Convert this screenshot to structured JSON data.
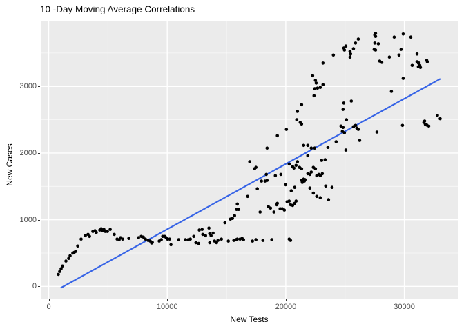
{
  "title": "10 -Day Moving Average Correlations",
  "colors": {
    "panel_bg": "#EBEBEB",
    "grid": "#FFFFFF",
    "point": "#000000",
    "trend": "#3764E6",
    "tick_label": "#4D4D4D",
    "tick_mark": "#333333",
    "outer_bg": "#FFFFFF"
  },
  "chart_data": {
    "type": "scatter",
    "title": "10 -Day Moving Average Correlations",
    "xlabel": "New Tests",
    "ylabel": "New Cases",
    "legend": false,
    "grid": true,
    "xlim": [
      -670,
      34508
    ],
    "ylim": [
      -193,
      3985
    ],
    "x_ticks": [
      0,
      10000,
      20000,
      30000
    ],
    "y_ticks": [
      0,
      1000,
      2000,
      3000
    ],
    "x_minor_ticks": [
      5000,
      15000,
      25000
    ],
    "y_minor_ticks": [
      500,
      1500,
      2500,
      3500
    ],
    "trend_line": {
      "x": [
        1050,
        33000
      ],
      "y": [
        -20,
        3110
      ]
    },
    "point_radius": 2.3,
    "points": [
      [
        815,
        180
      ],
      [
        930,
        225
      ],
      [
        1050,
        265
      ],
      [
        1165,
        305
      ],
      [
        1455,
        380
      ],
      [
        1690,
        420
      ],
      [
        1805,
        460
      ],
      [
        2040,
        500
      ],
      [
        2155,
        510
      ],
      [
        2270,
        525
      ],
      [
        2450,
        605
      ],
      [
        2740,
        710
      ],
      [
        3090,
        760
      ],
      [
        3320,
        780
      ],
      [
        3440,
        750
      ],
      [
        3730,
        825
      ],
      [
        3905,
        835
      ],
      [
        4020,
        810
      ],
      [
        4310,
        845
      ],
      [
        4430,
        865
      ],
      [
        4545,
        835
      ],
      [
        4660,
        855
      ],
      [
        4780,
        825
      ],
      [
        4955,
        825
      ],
      [
        5190,
        855
      ],
      [
        5535,
        780
      ],
      [
        5770,
        710
      ],
      [
        5945,
        700
      ],
      [
        6060,
        730
      ],
      [
        6235,
        710
      ],
      [
        6760,
        720
      ],
      [
        7575,
        730
      ],
      [
        7810,
        750
      ],
      [
        7985,
        740
      ],
      [
        8160,
        710
      ],
      [
        8390,
        690
      ],
      [
        8570,
        680
      ],
      [
        8685,
        650
      ],
      [
        8740,
        660
      ],
      [
        9325,
        680
      ],
      [
        9500,
        700
      ],
      [
        9620,
        750
      ],
      [
        9790,
        750
      ],
      [
        9910,
        730
      ],
      [
        10025,
        710
      ],
      [
        10200,
        710
      ],
      [
        10315,
        625
      ],
      [
        10960,
        700
      ],
      [
        11540,
        700
      ],
      [
        11775,
        700
      ],
      [
        11950,
        710
      ],
      [
        12240,
        750
      ],
      [
        12415,
        655
      ],
      [
        12650,
        645
      ],
      [
        12705,
        845
      ],
      [
        12940,
        855
      ],
      [
        13000,
        780
      ],
      [
        13230,
        760
      ],
      [
        13520,
        875
      ],
      [
        13580,
        790
      ],
      [
        13700,
        760
      ],
      [
        13870,
        800
      ],
      [
        13580,
        655
      ],
      [
        13990,
        680
      ],
      [
        14165,
        655
      ],
      [
        14280,
        690
      ],
      [
        14570,
        710
      ],
      [
        14865,
        955
      ],
      [
        15155,
        680
      ],
      [
        15330,
        1010
      ],
      [
        15505,
        1020
      ],
      [
        15680,
        1060
      ],
      [
        15855,
        1155
      ],
      [
        15620,
        690
      ],
      [
        15795,
        700
      ],
      [
        15910,
        710
      ],
      [
        16145,
        710
      ],
      [
        16320,
        720
      ],
      [
        16435,
        700
      ],
      [
        17195,
        680
      ],
      [
        17485,
        700
      ],
      [
        18070,
        690
      ],
      [
        18825,
        700
      ],
      [
        20285,
        710
      ],
      [
        20400,
        690
      ],
      [
        15910,
        1235
      ],
      [
        16030,
        1155
      ],
      [
        16785,
        1350
      ],
      [
        16960,
        1870
      ],
      [
        17370,
        1765
      ],
      [
        17600,
        1465
      ],
      [
        17485,
        1785
      ],
      [
        17950,
        1580
      ],
      [
        18245,
        1580
      ],
      [
        18420,
        1590
      ],
      [
        18360,
        1680
      ],
      [
        19120,
        1660
      ],
      [
        19585,
        1680
      ],
      [
        19990,
        1525
      ],
      [
        20460,
        1435
      ],
      [
        20750,
        1485
      ],
      [
        20285,
        1835
      ],
      [
        20575,
        1795
      ],
      [
        20865,
        1815
      ],
      [
        20985,
        1870
      ],
      [
        21160,
        1785
      ],
      [
        21335,
        1765
      ],
      [
        20690,
        1775
      ],
      [
        21335,
        1590
      ],
      [
        21510,
        1610
      ],
      [
        21565,
        1580
      ],
      [
        21625,
        1600
      ],
      [
        21390,
        1560
      ],
      [
        21860,
        1690
      ],
      [
        22030,
        1680
      ],
      [
        22150,
        1715
      ],
      [
        22325,
        1785
      ],
      [
        22500,
        1765
      ],
      [
        22615,
        1660
      ],
      [
        22790,
        1680
      ],
      [
        22905,
        1660
      ],
      [
        23025,
        1890
      ],
      [
        23315,
        1900
      ],
      [
        23080,
        1690
      ],
      [
        22030,
        1475
      ],
      [
        22325,
        1400
      ],
      [
        22615,
        1350
      ],
      [
        22905,
        1330
      ],
      [
        23375,
        1505
      ],
      [
        23605,
        1300
      ],
      [
        23900,
        1485
      ],
      [
        17835,
        1115
      ],
      [
        18535,
        1195
      ],
      [
        18710,
        1175
      ],
      [
        19000,
        1115
      ],
      [
        19235,
        1225
      ],
      [
        19290,
        1245
      ],
      [
        19525,
        1165
      ],
      [
        19700,
        1165
      ],
      [
        19875,
        1145
      ],
      [
        20110,
        1270
      ],
      [
        20285,
        1280
      ],
      [
        20400,
        1225
      ],
      [
        20575,
        1215
      ],
      [
        20750,
        1245
      ],
      [
        20865,
        1280
      ],
      [
        18420,
        2075
      ],
      [
        19290,
        2260
      ],
      [
        20050,
        2355
      ],
      [
        20925,
        2500
      ],
      [
        21215,
        2460
      ],
      [
        21335,
        2435
      ],
      [
        20985,
        2625
      ],
      [
        21335,
        2725
      ],
      [
        22380,
        2860
      ],
      [
        22440,
        2965
      ],
      [
        22675,
        2975
      ],
      [
        22905,
        2985
      ],
      [
        22560,
        3050
      ],
      [
        22265,
        3160
      ],
      [
        22500,
        3090
      ],
      [
        23140,
        3025
      ],
      [
        21510,
        2115
      ],
      [
        21860,
        2115
      ],
      [
        22150,
        2075
      ],
      [
        22440,
        2075
      ],
      [
        21860,
        1960
      ],
      [
        23550,
        2085
      ],
      [
        24245,
        2170
      ],
      [
        24890,
        2750
      ],
      [
        25530,
        2780
      ],
      [
        24830,
        2655
      ],
      [
        25120,
        2500
      ],
      [
        24655,
        2405
      ],
      [
        24830,
        2385
      ],
      [
        24945,
        2305
      ],
      [
        24770,
        2325
      ],
      [
        25705,
        2395
      ],
      [
        25995,
        2375
      ],
      [
        26230,
        2190
      ],
      [
        25065,
        2045
      ],
      [
        23140,
        3350
      ],
      [
        24015,
        3470
      ],
      [
        24890,
        3575
      ],
      [
        24945,
        3545
      ],
      [
        25065,
        3605
      ],
      [
        25415,
        3525
      ],
      [
        25470,
        3485
      ],
      [
        25415,
        3440
      ],
      [
        25705,
        3565
      ],
      [
        25880,
        3650
      ],
      [
        26115,
        3710
      ],
      [
        27510,
        3770
      ],
      [
        27570,
        3750
      ],
      [
        27570,
        3795
      ],
      [
        27510,
        3650
      ],
      [
        27805,
        3640
      ],
      [
        27455,
        3555
      ],
      [
        27570,
        3545
      ],
      [
        27920,
        3380
      ],
      [
        28095,
        3360
      ],
      [
        28735,
        3440
      ],
      [
        29145,
        3740
      ],
      [
        29900,
        3785
      ],
      [
        30545,
        3740
      ],
      [
        29725,
        3555
      ],
      [
        29550,
        3470
      ],
      [
        31070,
        3485
      ],
      [
        30660,
        3315
      ],
      [
        31245,
        3350
      ],
      [
        31940,
        3370
      ],
      [
        31360,
        3285
      ],
      [
        29900,
        3120
      ],
      [
        28910,
        2925
      ],
      [
        31885,
        3390
      ],
      [
        31070,
        3370
      ],
      [
        31185,
        3350
      ],
      [
        31300,
        3315
      ],
      [
        31185,
        3295
      ],
      [
        25880,
        2415
      ],
      [
        26115,
        2355
      ],
      [
        27685,
        2315
      ],
      [
        29845,
        2415
      ],
      [
        31650,
        2460
      ],
      [
        31710,
        2480
      ],
      [
        31770,
        2430
      ],
      [
        31885,
        2420
      ],
      [
        32060,
        2405
      ],
      [
        32790,
        2565
      ],
      [
        33020,
        2515
      ]
    ]
  }
}
